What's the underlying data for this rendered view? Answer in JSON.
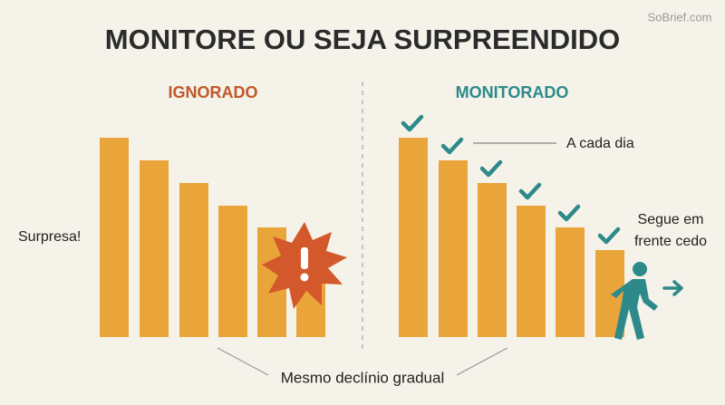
{
  "header": {
    "title": "MONITORE OU SEJA SURPREENDIDO",
    "watermark": "SoBrief.com"
  },
  "left": {
    "heading": "IGNORADO",
    "label": "Surpresa!"
  },
  "right": {
    "heading": "MONITORADO",
    "daily_label": "A cada dia",
    "ahead_label": [
      "Segue em",
      "frente cedo"
    ]
  },
  "footer": {
    "caption": "Mesmo declínio gradual"
  }
}
